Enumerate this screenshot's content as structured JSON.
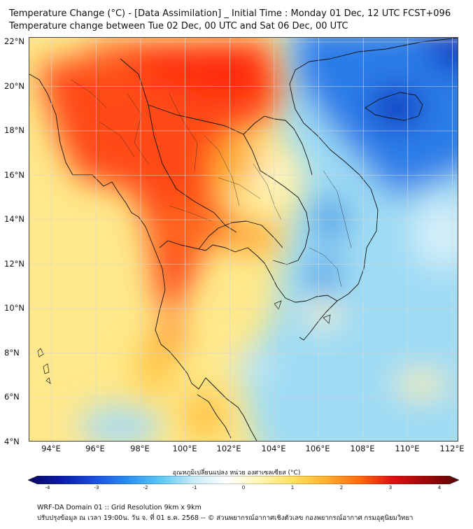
{
  "header": {
    "title_line1": "Temperature Change (°C) - [Data Assimilation] _ Initial Time : Monday 01 Dec, 12 UTC FCST+096",
    "title_line2": "Temperature change between Tue 02 Dec, 00 UTC and Sat 06 Dec, 00 UTC"
  },
  "map": {
    "lat_labels": [
      "22°N",
      "20°N",
      "18°N",
      "16°N",
      "14°N",
      "12°N",
      "10°N",
      "8°N",
      "6°N",
      "4°N"
    ],
    "lon_labels": [
      "94°E",
      "96°E",
      "98°E",
      "100°E",
      "102°E",
      "104°E",
      "106°E",
      "108°E",
      "110°E",
      "112°E"
    ],
    "lat_range": [
      4,
      22.2
    ],
    "lon_range": [
      93.0,
      112.3
    ]
  },
  "colorbar": {
    "label": "อุณหภูมิเปลี่ยนแปลง หน่วย องศาเซลเซียส (°C)",
    "ticks": [
      "-4",
      "-3",
      "-2",
      "-1",
      "0",
      "1",
      "2",
      "3",
      "4"
    ],
    "range": [
      -4,
      4
    ],
    "colors": [
      "#08085e",
      "#0a1aa8",
      "#1a4fe0",
      "#2b8ef0",
      "#5cc8f5",
      "#c8ecf8",
      "#ffffff",
      "#fff5b0",
      "#ffe060",
      "#ffb030",
      "#ff6a10",
      "#e01010",
      "#a00808",
      "#5a0303"
    ]
  },
  "footer": {
    "line1": "WRF-DA Domain 01 :: Grid Resolution 9km x 9km",
    "line2": "ปรับปรุงข้อมูล ณ เวลา 19:00น. วัน จ. ที่ 01 ธ.ค. 2568 -- © ส่วนพยากรณ์อากาศเชิงตัวเลข กองพยากรณ์อากาศ กรมอุตุนิยมวิทยา"
  }
}
